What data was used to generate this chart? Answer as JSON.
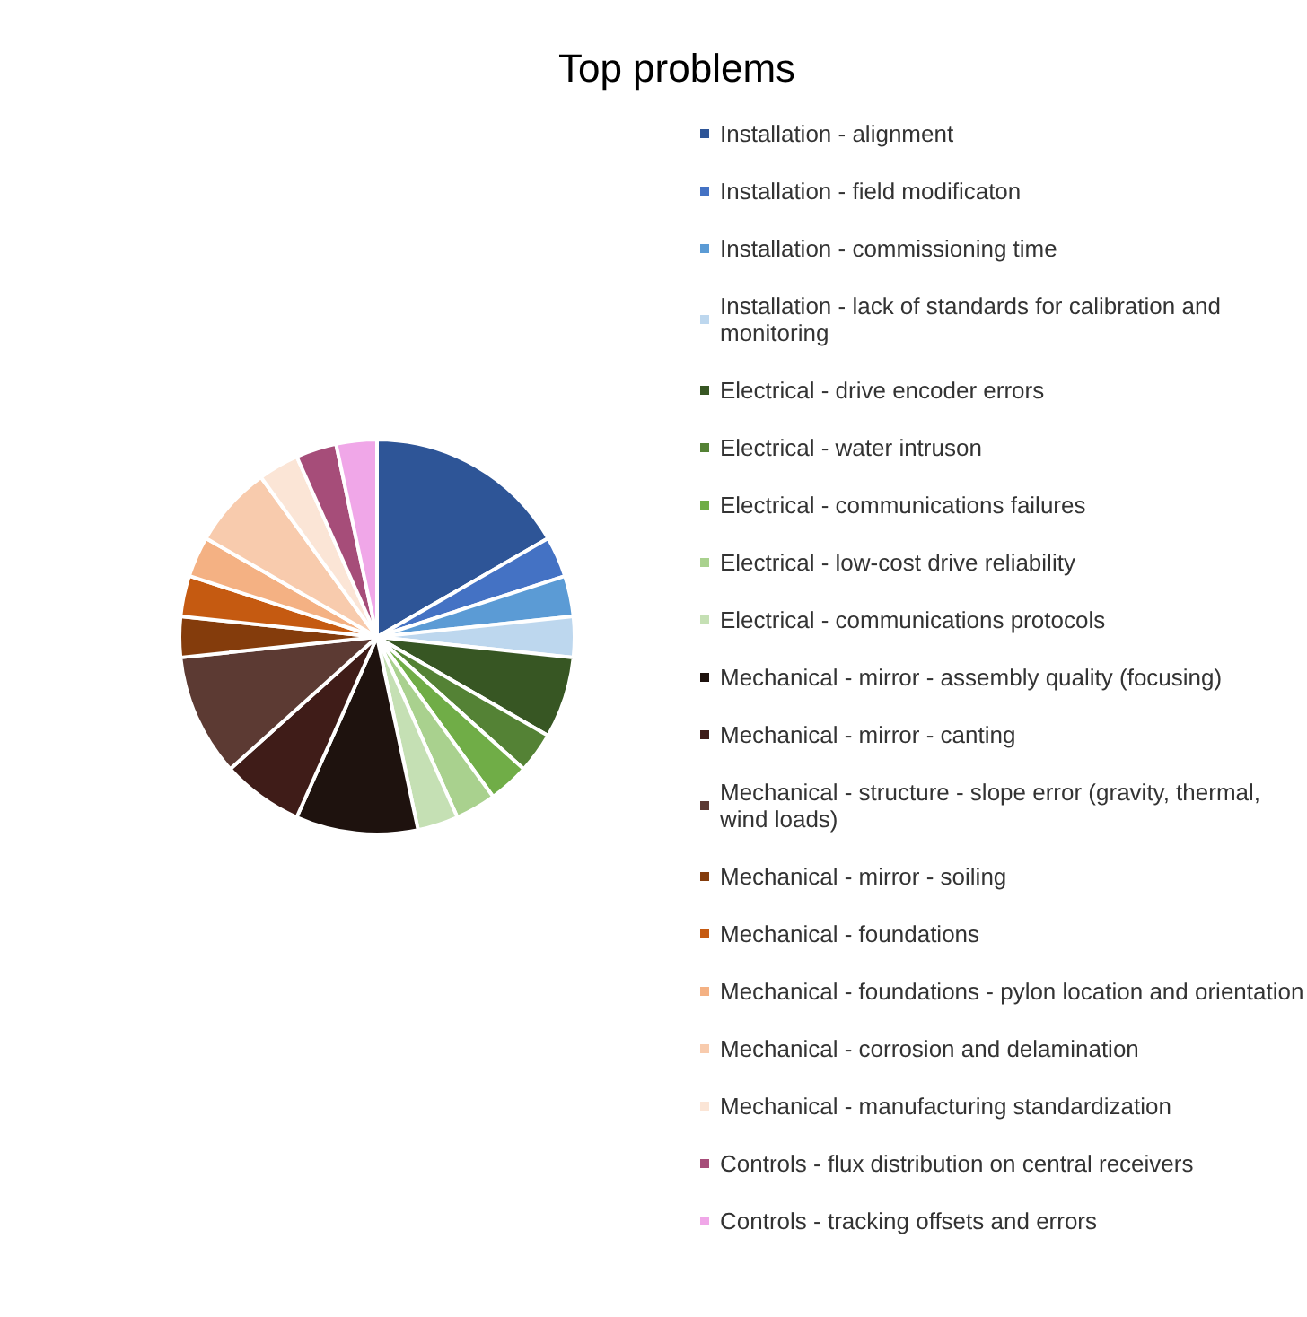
{
  "chart_data": {
    "type": "pie",
    "title": "Top problems",
    "categories": [
      "Installation - alignment",
      "Installation - field modificaton",
      "Installation - commissioning time",
      "Installation - lack of standards for calibration and monitoring",
      "Electrical - drive encoder errors",
      "Electrical - water intruson",
      "Electrical - communications failures",
      "Electrical - low-cost drive reliability",
      "Electrical - communications protocols",
      "Mechanical - mirror - assembly quality (focusing)",
      "Mechanical - mirror - canting",
      "Mechanical - structure - slope error (gravity, thermal, wind loads)",
      "Mechanical - mirror - soiling",
      "Mechanical - foundations",
      "Mechanical - foundations - pylon location and orientation",
      "Mechanical - corrosion and delamination",
      "Mechanical - manufacturing standardization",
      "Controls - flux distribution on central receivers",
      "Controls - tracking offsets and errors"
    ],
    "values": [
      16.67,
      3.33,
      3.33,
      3.33,
      6.67,
      3.33,
      3.33,
      3.33,
      3.33,
      10,
      6.67,
      10,
      3.33,
      3.33,
      3.33,
      6.67,
      3.33,
      3.33,
      3.33
    ],
    "colors": [
      "#2e5597",
      "#4472c4",
      "#5b9bd5",
      "#bdd7ee",
      "#375623",
      "#548235",
      "#70ad47",
      "#a9d18e",
      "#c5e0b4",
      "#1e120e",
      "#3f1c18",
      "#5c3a33",
      "#843c0c",
      "#c55a11",
      "#f4b183",
      "#f8cbad",
      "#fbe5d6",
      "#a64d79",
      "#f0a7e8"
    ],
    "legend": "right"
  }
}
